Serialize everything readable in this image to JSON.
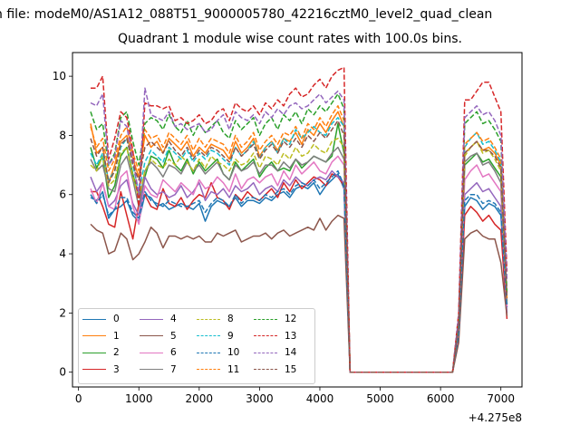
{
  "figure": {
    "suptitle": "n file: modeM0/AS1A12_088T51_9000005780_42216cztM0_level2_quad_clean",
    "offset_label": "+4.275e8"
  },
  "chart_data": {
    "type": "line",
    "title": "Quadrant 1 module wise count rates with 100.0s bins.",
    "xlabel": "",
    "ylabel": "",
    "x_offset": 427500000,
    "xlim": [
      -100,
      7350
    ],
    "ylim": [
      -0.5,
      10.8
    ],
    "x_ticks": [
      0,
      1000,
      2000,
      3000,
      4000,
      5000,
      6000,
      7000
    ],
    "x_tick_labels": [
      "0",
      "1000",
      "2000",
      "3000",
      "4000",
      "5000",
      "6000",
      "7000"
    ],
    "y_ticks": [
      0,
      2,
      4,
      6,
      8,
      10
    ],
    "y_tick_labels": [
      "0",
      "2",
      "4",
      "6",
      "8",
      "10"
    ],
    "legend_position": "lower-left",
    "legend_columns": 4,
    "grid": false,
    "x": [
      200,
      300,
      400,
      500,
      600,
      700,
      800,
      900,
      1000,
      1100,
      1200,
      1300,
      1400,
      1500,
      1600,
      1700,
      1800,
      1900,
      2000,
      2100,
      2200,
      2300,
      2400,
      2500,
      2600,
      2700,
      2800,
      2900,
      3000,
      3100,
      3200,
      3300,
      3400,
      3500,
      3600,
      3700,
      3800,
      3900,
      4000,
      4100,
      4200,
      4300,
      4400,
      4500,
      4600,
      4700,
      4800,
      4900,
      5000,
      5100,
      5200,
      5300,
      5400,
      5500,
      5600,
      5700,
      5800,
      5900,
      6000,
      6100,
      6200,
      6300,
      6400,
      6500,
      6600,
      6700,
      6800,
      6900,
      7000,
      7100
    ],
    "series": [
      {
        "name": "0",
        "color": "#1f77b4",
        "dash": "solid",
        "values": [
          5.9,
          5.8,
          6.1,
          5.2,
          5.5,
          5.6,
          5.8,
          5.3,
          5.1,
          6.0,
          5.9,
          5.6,
          5.7,
          5.5,
          5.6,
          5.7,
          5.6,
          5.5,
          5.7,
          5.1,
          5.6,
          5.8,
          5.7,
          5.6,
          5.9,
          5.6,
          5.8,
          5.8,
          5.7,
          5.9,
          5.8,
          6.0,
          6.1,
          5.9,
          6.2,
          6.3,
          6.2,
          6.4,
          6.0,
          6.3,
          6.5,
          6.7,
          6.2,
          0,
          0,
          0,
          0,
          0,
          0,
          0,
          0,
          0,
          0,
          0,
          0,
          0,
          0,
          0,
          0,
          0,
          0,
          1.3,
          5.6,
          5.9,
          5.8,
          5.5,
          5.7,
          5.6,
          5.3,
          2.2
        ]
      },
      {
        "name": "1",
        "color": "#ff7f0e",
        "dash": "solid",
        "values": [
          8.4,
          7.4,
          7.6,
          6.4,
          7.0,
          7.8,
          8.0,
          7.2,
          6.6,
          8.0,
          7.6,
          7.8,
          7.4,
          7.9,
          7.7,
          7.5,
          7.8,
          7.3,
          7.6,
          7.4,
          7.7,
          7.6,
          7.5,
          7.2,
          7.8,
          7.4,
          7.6,
          7.9,
          7.3,
          7.6,
          7.8,
          7.5,
          7.9,
          7.8,
          8.1,
          7.7,
          8.2,
          8.0,
          8.4,
          8.1,
          8.5,
          8.8,
          8.3,
          0,
          0,
          0,
          0,
          0,
          0,
          0,
          0,
          0,
          0,
          0,
          0,
          0,
          0,
          0,
          0,
          0,
          0,
          1.6,
          7.4,
          7.6,
          7.8,
          7.5,
          7.6,
          7.4,
          7.0,
          2.4
        ]
      },
      {
        "name": "2",
        "color": "#2ca02c",
        "dash": "solid",
        "values": [
          7.6,
          6.9,
          7.3,
          5.9,
          6.3,
          7.3,
          7.6,
          6.7,
          5.9,
          6.6,
          7.3,
          7.2,
          6.9,
          7.5,
          7.0,
          6.8,
          7.2,
          6.7,
          7.1,
          6.8,
          7.0,
          7.2,
          6.7,
          6.5,
          7.1,
          6.8,
          7.0,
          7.2,
          6.6,
          6.9,
          7.1,
          6.8,
          6.9,
          6.8,
          7.2,
          6.9,
          7.1,
          7.3,
          7.2,
          7.1,
          7.3,
          8.4,
          7.4,
          0,
          0,
          0,
          0,
          0,
          0,
          0,
          0,
          0,
          0,
          0,
          0,
          0,
          0,
          0,
          0,
          0,
          0,
          1.4,
          7.0,
          7.2,
          7.4,
          7.1,
          7.2,
          6.9,
          6.6,
          2.3
        ]
      },
      {
        "name": "3",
        "color": "#d62728",
        "dash": "solid",
        "values": [
          6.1,
          6.1,
          5.6,
          5.0,
          4.9,
          6.1,
          5.3,
          4.5,
          5.7,
          6.0,
          5.6,
          5.5,
          6.2,
          5.7,
          5.6,
          5.9,
          5.5,
          5.8,
          6.0,
          5.9,
          6.4,
          5.9,
          5.8,
          5.5,
          6.0,
          5.8,
          6.1,
          5.9,
          5.8,
          6.0,
          6.2,
          5.9,
          6.4,
          6.1,
          6.5,
          6.2,
          6.4,
          6.6,
          6.5,
          6.3,
          6.7,
          6.6,
          6.3,
          0,
          0,
          0,
          0,
          0,
          0,
          0,
          0,
          0,
          0,
          0,
          0,
          0,
          0,
          0,
          0,
          0,
          0,
          1.2,
          5.3,
          5.6,
          5.4,
          5.1,
          5.3,
          5.0,
          4.8,
          1.8
        ]
      },
      {
        "name": "4",
        "color": "#9467bd",
        "dash": "solid",
        "values": [
          6.6,
          6.1,
          6.4,
          5.6,
          5.8,
          6.3,
          6.5,
          5.7,
          5.3,
          6.6,
          6.2,
          6.0,
          6.1,
          5.9,
          6.0,
          6.3,
          5.9,
          6.1,
          6.4,
          5.8,
          6.1,
          6.0,
          6.2,
          5.9,
          6.3,
          6.1,
          6.2,
          6.4,
          6.0,
          6.2,
          6.3,
          6.1,
          6.5,
          6.3,
          6.6,
          6.4,
          6.3,
          6.5,
          6.6,
          6.5,
          6.8,
          6.6,
          6.4,
          0,
          0,
          0,
          0,
          0,
          0,
          0,
          0,
          0,
          0,
          0,
          0,
          0,
          0,
          0,
          0,
          0,
          0,
          1.3,
          6.0,
          6.2,
          6.4,
          6.1,
          6.2,
          5.9,
          5.6,
          2.0
        ]
      },
      {
        "name": "5",
        "color": "#8c564b",
        "dash": "solid",
        "values": [
          5.0,
          4.8,
          4.7,
          4.0,
          4.1,
          4.7,
          4.5,
          3.8,
          4.0,
          4.4,
          4.9,
          4.7,
          4.2,
          4.6,
          4.6,
          4.5,
          4.6,
          4.5,
          4.6,
          4.4,
          4.4,
          4.7,
          4.6,
          4.7,
          4.8,
          4.4,
          4.5,
          4.6,
          4.6,
          4.7,
          4.5,
          4.7,
          4.8,
          4.6,
          4.7,
          4.8,
          4.9,
          4.8,
          5.2,
          4.8,
          5.1,
          5.3,
          5.2,
          0,
          0,
          0,
          0,
          0,
          0,
          0,
          0,
          0,
          0,
          0,
          0,
          0,
          0,
          0,
          0,
          0,
          0,
          1.0,
          4.5,
          4.7,
          4.8,
          4.6,
          4.5,
          4.5,
          3.7,
          1.9
        ]
      },
      {
        "name": "6",
        "color": "#e377c2",
        "dash": "solid",
        "values": [
          6.2,
          5.7,
          6.4,
          5.6,
          5.5,
          6.6,
          6.8,
          5.6,
          5.0,
          6.3,
          6.0,
          5.9,
          6.5,
          6.3,
          6.1,
          6.4,
          6.2,
          6.0,
          6.5,
          6.2,
          6.3,
          6.6,
          6.4,
          6.1,
          6.7,
          6.2,
          6.5,
          6.6,
          6.4,
          6.6,
          6.7,
          6.3,
          6.8,
          6.5,
          7.0,
          6.7,
          6.9,
          7.1,
          6.8,
          6.7,
          7.1,
          7.3,
          7.0,
          0,
          0,
          0,
          0,
          0,
          0,
          0,
          0,
          0,
          0,
          0,
          0,
          0,
          0,
          0,
          0,
          0,
          0,
          1.4,
          6.5,
          6.8,
          7.0,
          6.6,
          6.7,
          6.4,
          6.1,
          2.2
        ]
      },
      {
        "name": "7",
        "color": "#7f7f7f",
        "dash": "solid",
        "values": [
          7.2,
          6.8,
          7.0,
          6.2,
          6.1,
          7.0,
          7.3,
          6.5,
          5.6,
          6.8,
          7.1,
          6.9,
          6.6,
          7.0,
          6.9,
          6.7,
          7.1,
          6.8,
          7.0,
          6.7,
          6.9,
          7.1,
          6.7,
          6.5,
          7.0,
          6.8,
          6.9,
          7.1,
          6.7,
          7.0,
          7.0,
          6.8,
          7.1,
          6.9,
          7.2,
          7.0,
          7.1,
          7.3,
          7.2,
          7.1,
          7.4,
          7.6,
          7.2,
          0,
          0,
          0,
          0,
          0,
          0,
          0,
          0,
          0,
          0,
          0,
          0,
          0,
          0,
          0,
          0,
          0,
          0,
          1.5,
          7.1,
          7.3,
          7.4,
          7.0,
          7.1,
          6.8,
          6.4,
          2.3
        ]
      },
      {
        "name": "8",
        "color": "#bcbd22",
        "dash": "dashed",
        "values": [
          7.0,
          6.8,
          7.3,
          6.3,
          6.5,
          7.4,
          7.6,
          6.6,
          5.9,
          6.8,
          7.2,
          7.0,
          6.9,
          7.2,
          7.0,
          7.3,
          7.1,
          6.8,
          7.2,
          6.9,
          7.3,
          7.1,
          7.0,
          6.8,
          7.2,
          7.0,
          7.1,
          7.4,
          6.9,
          7.3,
          7.2,
          7.0,
          7.4,
          7.2,
          7.6,
          7.3,
          7.4,
          7.7,
          7.5,
          7.4,
          7.8,
          7.9,
          7.6,
          0,
          0,
          0,
          0,
          0,
          0,
          0,
          0,
          0,
          0,
          0,
          0,
          0,
          0,
          0,
          0,
          0,
          0,
          1.5,
          7.3,
          7.6,
          7.8,
          7.4,
          7.5,
          7.2,
          6.8,
          2.4
        ]
      },
      {
        "name": "9",
        "color": "#17becf",
        "dash": "dashed",
        "values": [
          7.4,
          7.0,
          7.4,
          6.5,
          6.8,
          7.6,
          7.9,
          7.0,
          6.1,
          7.1,
          7.5,
          7.3,
          7.1,
          7.6,
          7.4,
          7.2,
          7.5,
          7.1,
          7.4,
          7.2,
          7.5,
          7.4,
          7.2,
          7.0,
          7.6,
          7.3,
          7.5,
          7.8,
          7.2,
          7.6,
          7.8,
          7.4,
          7.9,
          7.7,
          8.2,
          7.9,
          8.1,
          8.3,
          8.1,
          8.0,
          8.4,
          8.6,
          8.3,
          0,
          0,
          0,
          0,
          0,
          0,
          0,
          0,
          0,
          0,
          0,
          0,
          0,
          0,
          0,
          0,
          0,
          0,
          1.6,
          7.6,
          7.9,
          8.1,
          7.7,
          7.8,
          7.5,
          7.1,
          2.5
        ]
      },
      {
        "name": "10",
        "color": "#1f77b4",
        "dash": "dashed",
        "values": [
          6.0,
          5.7,
          6.0,
          5.3,
          5.5,
          5.9,
          5.9,
          5.4,
          5.2,
          6.1,
          5.8,
          5.7,
          5.6,
          5.8,
          5.7,
          5.6,
          5.6,
          5.7,
          5.8,
          5.4,
          5.7,
          5.9,
          5.8,
          5.6,
          6.0,
          5.7,
          5.9,
          5.9,
          5.8,
          6.0,
          5.9,
          6.1,
          6.2,
          6.0,
          6.3,
          6.4,
          6.3,
          6.5,
          6.2,
          6.4,
          6.6,
          6.8,
          6.3,
          0,
          0,
          0,
          0,
          0,
          0,
          0,
          0,
          0,
          0,
          0,
          0,
          0,
          0,
          0,
          0,
          0,
          0,
          1.3,
          5.8,
          6.0,
          6.0,
          5.7,
          5.8,
          5.7,
          5.4,
          2.2
        ]
      },
      {
        "name": "11",
        "color": "#ff7f0e",
        "dash": "dashed",
        "values": [
          8.3,
          7.6,
          7.9,
          6.8,
          7.2,
          8.0,
          8.3,
          7.4,
          6.8,
          8.2,
          7.9,
          8.0,
          7.6,
          8.1,
          7.9,
          7.7,
          8.0,
          7.5,
          7.9,
          7.6,
          7.9,
          7.8,
          7.7,
          7.4,
          8.0,
          7.6,
          7.8,
          8.1,
          7.5,
          7.8,
          8.0,
          7.7,
          8.1,
          8.0,
          8.3,
          7.9,
          8.4,
          8.2,
          8.6,
          8.3,
          8.7,
          9.0,
          8.5,
          0,
          0,
          0,
          0,
          0,
          0,
          0,
          0,
          0,
          0,
          0,
          0,
          0,
          0,
          0,
          0,
          0,
          0,
          1.7,
          7.7,
          7.9,
          8.1,
          7.8,
          7.9,
          7.6,
          7.2,
          2.5
        ]
      },
      {
        "name": "12",
        "color": "#2ca02c",
        "dash": "dashed",
        "values": [
          8.8,
          8.2,
          8.4,
          7.0,
          7.4,
          8.6,
          8.8,
          7.8,
          7.0,
          8.4,
          8.6,
          8.5,
          8.2,
          8.7,
          8.3,
          8.1,
          8.5,
          8.0,
          8.4,
          8.1,
          8.3,
          8.5,
          8.1,
          7.9,
          8.5,
          8.2,
          8.4,
          8.6,
          8.0,
          8.4,
          8.6,
          8.2,
          8.7,
          8.5,
          8.8,
          8.4,
          8.9,
          8.7,
          9.0,
          8.8,
          9.1,
          9.4,
          8.9,
          0,
          0,
          0,
          0,
          0,
          0,
          0,
          0,
          0,
          0,
          0,
          0,
          0,
          0,
          0,
          0,
          0,
          0,
          1.8,
          8.4,
          8.6,
          8.8,
          8.4,
          8.5,
          8.2,
          7.8,
          2.7
        ]
      },
      {
        "name": "13",
        "color": "#d62728",
        "dash": "dashed",
        "values": [
          9.6,
          9.6,
          10.0,
          7.2,
          7.9,
          8.8,
          8.6,
          7.5,
          5.6,
          9.1,
          9.0,
          9.0,
          8.9,
          9.0,
          8.5,
          8.6,
          8.4,
          8.5,
          8.7,
          8.4,
          8.5,
          8.8,
          8.9,
          8.5,
          9.1,
          8.9,
          8.8,
          9.0,
          8.7,
          9.1,
          8.9,
          9.2,
          9.0,
          9.4,
          9.6,
          9.3,
          9.4,
          9.7,
          9.9,
          9.6,
          10.0,
          10.2,
          10.3,
          0,
          0,
          0,
          0,
          0,
          0,
          0,
          0,
          0,
          0,
          0,
          0,
          0,
          0,
          0,
          0,
          0,
          0,
          2.0,
          9.2,
          9.2,
          9.5,
          9.8,
          9.8,
          9.3,
          8.8,
          3.4
        ]
      },
      {
        "name": "14",
        "color": "#9467bd",
        "dash": "dashed",
        "values": [
          9.1,
          9.0,
          9.4,
          7.0,
          7.3,
          8.5,
          8.3,
          7.2,
          6.0,
          9.6,
          8.7,
          8.6,
          8.5,
          8.8,
          8.3,
          8.4,
          8.2,
          8.3,
          8.4,
          8.1,
          8.2,
          8.5,
          8.7,
          8.2,
          8.8,
          8.6,
          8.5,
          8.7,
          8.4,
          8.8,
          8.6,
          8.9,
          8.7,
          9.0,
          9.1,
          8.9,
          9.0,
          9.2,
          9.4,
          9.1,
          9.3,
          9.5,
          9.2,
          0,
          0,
          0,
          0,
          0,
          0,
          0,
          0,
          0,
          0,
          0,
          0,
          0,
          0,
          0,
          0,
          0,
          0,
          1.9,
          8.6,
          8.8,
          9.0,
          8.7,
          8.8,
          8.5,
          8.0,
          3.1
        ]
      },
      {
        "name": "15",
        "color": "#8c564b",
        "dash": "dashed",
        "values": [
          7.9,
          7.3,
          7.6,
          6.4,
          6.8,
          7.7,
          7.9,
          7.0,
          6.5,
          7.6,
          7.8,
          7.6,
          7.4,
          7.8,
          7.5,
          7.3,
          7.6,
          7.2,
          7.5,
          7.3,
          7.6,
          7.5,
          7.3,
          7.1,
          7.6,
          7.3,
          7.5,
          7.7,
          7.2,
          7.5,
          7.7,
          7.4,
          7.8,
          7.6,
          7.9,
          7.6,
          8.0,
          7.8,
          8.1,
          7.9,
          8.2,
          8.5,
          8.0,
          0,
          0,
          0,
          0,
          0,
          0,
          0,
          0,
          0,
          0,
          0,
          0,
          0,
          0,
          0,
          0,
          0,
          0,
          1.6,
          7.4,
          7.6,
          7.8,
          7.5,
          7.5,
          7.3,
          6.9,
          2.5
        ]
      }
    ]
  }
}
